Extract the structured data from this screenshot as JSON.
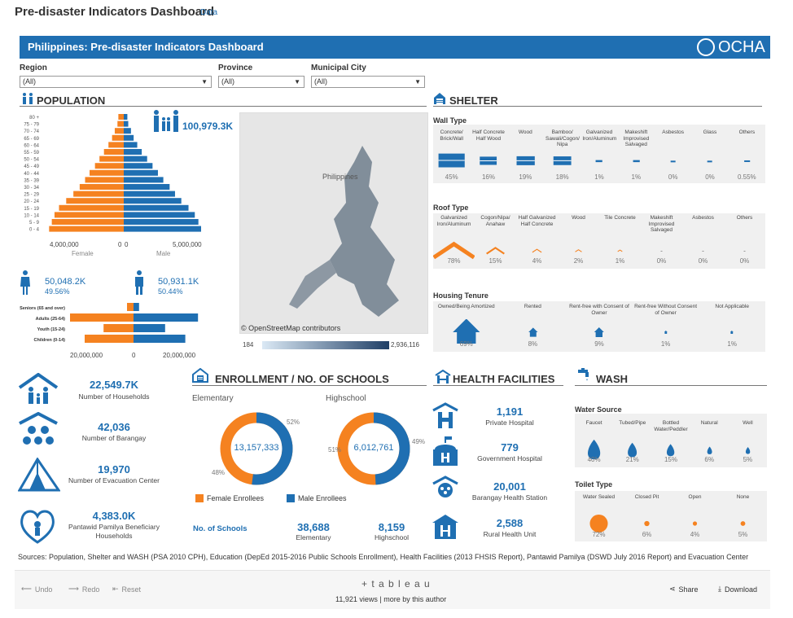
{
  "header": {
    "title": "Pre-disaster Indicators Dashboard",
    "data_link": "Data"
  },
  "banner": {
    "title": "Philippines: Pre-disaster Indicators Dashboard",
    "logo_text": "OCHA"
  },
  "filters": [
    {
      "label": "Region",
      "value": "(All)"
    },
    {
      "label": "Province",
      "value": "(All)"
    },
    {
      "label": "Municipal City",
      "value": "(All)"
    }
  ],
  "population": {
    "title": "POPULATION",
    "total": "100,979.3K",
    "female_total": "50,048.2K",
    "female_pct": "49.56%",
    "male_total": "50,931.1K",
    "male_pct": "50.44%",
    "pyramid_axis": {
      "left": "4,000,000",
      "center_left": "0",
      "center_right": "0",
      "right": "5,000,000",
      "female_label": "Female",
      "male_label": "Male"
    },
    "age_axis": {
      "left": "20,000,000",
      "center": "0",
      "right": "20,000,000"
    },
    "age_groups": [
      "Seniors (65 and over)",
      "Adults (25-64)",
      "Youth (15-24)",
      "Children (0-14)"
    ],
    "map_attribution": "© OpenStreetMap contributors",
    "map_label": "Philippines",
    "legend_min": "184",
    "legend_max": "2,936,116"
  },
  "chart_data": [
    {
      "type": "bar",
      "categories": [
        "80 +",
        "75 - 79",
        "70 - 74",
        "65 - 69",
        "60 - 64",
        "55 - 59",
        "50 - 54",
        "45 - 49",
        "40 - 44",
        "35 - 39",
        "30 - 34",
        "25 - 29",
        "20 - 24",
        "15 - 19",
        "10 - 14",
        "5 - 9",
        "0 - 4"
      ],
      "series": [
        {
          "name": "Female",
          "values": [
            300000,
            350000,
            500000,
            650000,
            850000,
            1100000,
            1350000,
            1600000,
            1900000,
            2150000,
            2450000,
            2800000,
            3200000,
            3600000,
            3850000,
            4000000,
            4150000
          ]
        },
        {
          "name": "Male",
          "values": [
            200000,
            250000,
            400000,
            550000,
            750000,
            1000000,
            1300000,
            1600000,
            1900000,
            2200000,
            2550000,
            2850000,
            3200000,
            3600000,
            3950000,
            4150000,
            4300000
          ]
        }
      ],
      "xlabel": "",
      "ylabel": ""
    },
    {
      "type": "bar",
      "categories": [
        "Seniors (65 and over)",
        "Adults (25-64)",
        "Youth (15-24)",
        "Children (0-14)"
      ],
      "series": [
        {
          "name": "Female",
          "values": [
            2000000,
            19500000,
            9200000,
            15000000
          ]
        },
        {
          "name": "Male",
          "values": [
            1700000,
            19800000,
            9700000,
            15900000
          ]
        }
      ],
      "xlabel": "",
      "ylabel": ""
    },
    {
      "type": "pie",
      "title": "Elementary",
      "categories": [
        "Female Enrollees",
        "Male Enrollees"
      ],
      "values": [
        48,
        52
      ]
    },
    {
      "type": "pie",
      "title": "Highschool",
      "categories": [
        "Female Enrollees",
        "Male Enrollees"
      ],
      "values": [
        51,
        49
      ]
    }
  ],
  "shelter": {
    "title": "SHELTER",
    "wall": {
      "title": "Wall Type",
      "items": [
        {
          "label": "Concrete/ Brick/Wall",
          "pct": "45%"
        },
        {
          "label": "Half Concrete Half Wood",
          "pct": "16%"
        },
        {
          "label": "Wood",
          "pct": "19%"
        },
        {
          "label": "Bamboo/ Sawali/Cogon/ Nipa",
          "pct": "18%"
        },
        {
          "label": "Galvanized Iron/Aluminum",
          "pct": "1%"
        },
        {
          "label": "Makeshift Improvised Salvaged",
          "pct": "1%"
        },
        {
          "label": "Asbestos",
          "pct": "0%"
        },
        {
          "label": "Glass",
          "pct": "0%"
        },
        {
          "label": "Others",
          "pct": "0.55%"
        }
      ]
    },
    "roof": {
      "title": "Roof Type",
      "items": [
        {
          "label": "Galvanized Iron/Aluminum",
          "pct": "78%"
        },
        {
          "label": "Cogon/Nipa/ Anahaw",
          "pct": "15%"
        },
        {
          "label": "Half Galvanized Half Concrete",
          "pct": "4%"
        },
        {
          "label": "Wood",
          "pct": "2%"
        },
        {
          "label": "Tile Concrete",
          "pct": "1%"
        },
        {
          "label": "Makeshift Improvised Salvaged",
          "pct": "0%"
        },
        {
          "label": "Asbestos",
          "pct": "0%"
        },
        {
          "label": "Others",
          "pct": "0%"
        }
      ]
    },
    "tenure": {
      "title": "Housing Tenure",
      "items": [
        {
          "label": "Owned/Being Amortized",
          "pct": "69%"
        },
        {
          "label": "Rented",
          "pct": "8%"
        },
        {
          "label": "Rent-free with Consent of Owner",
          "pct": "9%"
        },
        {
          "label": "Rent-free Without Consent of Owner",
          "pct": "1%"
        },
        {
          "label": "Not Applicable",
          "pct": "1%"
        }
      ]
    }
  },
  "stats": [
    {
      "value": "22,549.7K",
      "label": "Number of Households"
    },
    {
      "value": "42,036",
      "label": "Number of Barangay"
    },
    {
      "value": "19,970",
      "label": "Number of Evacuation Center"
    },
    {
      "value": "4,383.0K",
      "label": "Pantawid Pamilya Beneficiary Households"
    }
  ],
  "enrollment": {
    "title": "ENROLLMENT / NO. OF SCHOOLS",
    "elementary_label": "Elementary",
    "highschool_label": "Highschool",
    "elementary_total": "13,157,333",
    "highschool_total": "6,012,761",
    "elem_male_pct": "52%",
    "elem_female_pct": "48%",
    "hs_female_pct": "51%",
    "hs_male_pct": "49%",
    "legend_female": "Female Enrollees",
    "legend_male": "Male Enrollees",
    "schools_label": "No. of Schools",
    "elementary_schools": "38,688",
    "elementary_schools_label": "Elementary",
    "highschool_schools": "8,159",
    "highschool_schools_label": "Highschool"
  },
  "health": {
    "title": "HEALTH FACILITIES",
    "items": [
      {
        "value": "1,191",
        "label": "Private Hospital"
      },
      {
        "value": "779",
        "label": "Government Hospital"
      },
      {
        "value": "20,001",
        "label": "Barangay Health Station"
      },
      {
        "value": "2,588",
        "label": "Rural Health Unit"
      }
    ]
  },
  "wash": {
    "title": "WASH",
    "water": {
      "title": "Water Source",
      "items": [
        {
          "label": "Faucet",
          "pct": "40%"
        },
        {
          "label": "Tubed/Pipe",
          "pct": "21%"
        },
        {
          "label": "Bottled Water/Peddler",
          "pct": "15%"
        },
        {
          "label": "Natural",
          "pct": "6%"
        },
        {
          "label": "Well",
          "pct": "5%"
        }
      ]
    },
    "toilet": {
      "title": "Toilet Type",
      "items": [
        {
          "label": "Water Sealed",
          "pct": "72%"
        },
        {
          "label": "Closed Pit",
          "pct": "6%"
        },
        {
          "label": "Open",
          "pct": "4%"
        },
        {
          "label": "None",
          "pct": "5%"
        }
      ]
    }
  },
  "sources": "Sources: Population, Shelter and WASH (PSA 2010 CPH), Education (DepEd 2015-2016 Public Schools Enrollment), Health Facilities (2013 FHSIS Report), Pantawid Pamilya (DSWD July 2016 Report) and Evacuation Center",
  "toolbar": {
    "undo": "Undo",
    "redo": "Redo",
    "reset": "Reset",
    "brand": "+ t a b l e a u",
    "views": "11,921 views",
    "more": "more by this author",
    "share": "Share",
    "download": "Download"
  },
  "colors": {
    "blue": "#1f6fb2",
    "orange": "#f58220",
    "banner": "#1f6fb2"
  }
}
